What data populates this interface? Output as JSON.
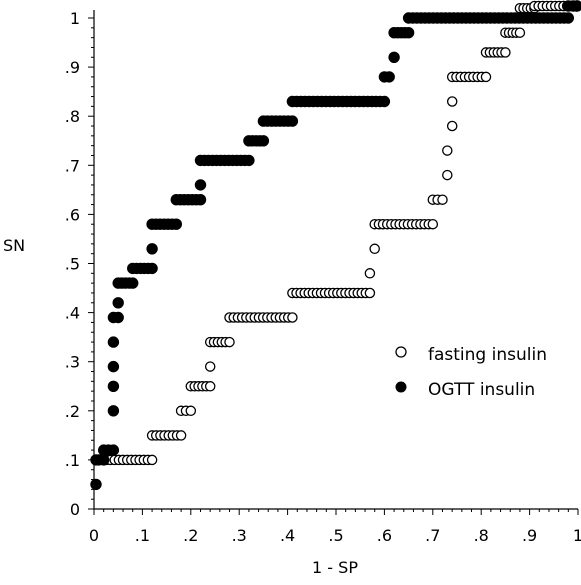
{
  "chart_data": {
    "type": "scatter",
    "xlabel": "1 - SP",
    "ylabel": "SN",
    "xlim": [
      0,
      1
    ],
    "ylim": [
      0,
      1
    ],
    "x_ticks": [
      {
        "value": 0,
        "label": "0"
      },
      {
        "value": 0.1,
        "label": ".1"
      },
      {
        "value": 0.2,
        "label": ".2"
      },
      {
        "value": 0.3,
        "label": ".3"
      },
      {
        "value": 0.4,
        "label": ".4"
      },
      {
        "value": 0.5,
        "label": ".5"
      },
      {
        "value": 0.6,
        "label": ".6"
      },
      {
        "value": 0.7,
        "label": ".7"
      },
      {
        "value": 0.8,
        "label": ".8"
      },
      {
        "value": 0.9,
        "label": ".9"
      },
      {
        "value": 1,
        "label": "1"
      }
    ],
    "y_ticks": [
      {
        "value": 0,
        "label": "0"
      },
      {
        "value": 0.1,
        "label": ".1"
      },
      {
        "value": 0.2,
        "label": ".2"
      },
      {
        "value": 0.3,
        "label": ".3"
      },
      {
        "value": 0.4,
        "label": ".4"
      },
      {
        "value": 0.5,
        "label": ".5"
      },
      {
        "value": 0.6,
        "label": ".6"
      },
      {
        "value": 0.7,
        "label": ".7"
      },
      {
        "value": 0.8,
        "label": ".8"
      },
      {
        "value": 0.9,
        "label": ".9"
      },
      {
        "value": 1,
        "label": "1"
      }
    ],
    "grid": false,
    "legend_position": "right-center",
    "series": [
      {
        "name": "fasting insulin",
        "marker": "open-circle",
        "color": "#000000",
        "segments": [
          {
            "x0": 0.0,
            "x1": 0.0,
            "y": 0.05
          },
          {
            "x0": 0.0,
            "x1": 0.12,
            "y": 0.1
          },
          {
            "x0": 0.12,
            "x1": 0.18,
            "y": 0.15
          },
          {
            "x0": 0.18,
            "x1": 0.2,
            "y": 0.2
          },
          {
            "x0": 0.2,
            "x1": 0.24,
            "y": 0.25
          },
          {
            "x0": 0.24,
            "x1": 0.24,
            "y": 0.29
          },
          {
            "x0": 0.24,
            "x1": 0.28,
            "y": 0.34
          },
          {
            "x0": 0.28,
            "x1": 0.41,
            "y": 0.39
          },
          {
            "x0": 0.41,
            "x1": 0.57,
            "y": 0.44
          },
          {
            "x0": 0.57,
            "x1": 0.57,
            "y": 0.48
          },
          {
            "x0": 0.58,
            "x1": 0.58,
            "y": 0.53
          },
          {
            "x0": 0.58,
            "x1": 0.7,
            "y": 0.58
          },
          {
            "x0": 0.7,
            "x1": 0.72,
            "y": 0.63
          },
          {
            "x0": 0.73,
            "x1": 0.73,
            "y": 0.68
          },
          {
            "x0": 0.73,
            "x1": 0.73,
            "y": 0.73
          },
          {
            "x0": 0.74,
            "x1": 0.74,
            "y": 0.78
          },
          {
            "x0": 0.74,
            "x1": 0.74,
            "y": 0.83
          },
          {
            "x0": 0.74,
            "x1": 0.81,
            "y": 0.88
          },
          {
            "x0": 0.81,
            "x1": 0.85,
            "y": 0.93
          },
          {
            "x0": 0.85,
            "x1": 0.88,
            "y": 0.97
          },
          {
            "x0": 0.88,
            "x1": 0.91,
            "y": 1.02
          },
          {
            "x0": 0.91,
            "x1": 0.97,
            "y": 1.07
          },
          {
            "x0": 0.97,
            "x1": 1.0,
            "y": 1.07
          }
        ]
      },
      {
        "name": "OGTT insulin",
        "marker": "filled-circle",
        "color": "#000000",
        "segments": [
          {
            "x0": 0.0,
            "x1": 0.0,
            "y": 0.05
          },
          {
            "x0": 0.0,
            "x1": 0.02,
            "y": 0.1
          },
          {
            "x0": 0.02,
            "x1": 0.04,
            "y": 0.12
          },
          {
            "x0": 0.04,
            "x1": 0.04,
            "y": 0.2
          },
          {
            "x0": 0.04,
            "x1": 0.04,
            "y": 0.25
          },
          {
            "x0": 0.04,
            "x1": 0.04,
            "y": 0.29
          },
          {
            "x0": 0.04,
            "x1": 0.04,
            "y": 0.34
          },
          {
            "x0": 0.04,
            "x1": 0.05,
            "y": 0.39
          },
          {
            "x0": 0.05,
            "x1": 0.05,
            "y": 0.42
          },
          {
            "x0": 0.05,
            "x1": 0.08,
            "y": 0.46
          },
          {
            "x0": 0.08,
            "x1": 0.12,
            "y": 0.49
          },
          {
            "x0": 0.12,
            "x1": 0.12,
            "y": 0.53
          },
          {
            "x0": 0.12,
            "x1": 0.17,
            "y": 0.58
          },
          {
            "x0": 0.17,
            "x1": 0.22,
            "y": 0.63
          },
          {
            "x0": 0.22,
            "x1": 0.22,
            "y": 0.66
          },
          {
            "x0": 0.22,
            "x1": 0.32,
            "y": 0.71
          },
          {
            "x0": 0.32,
            "x1": 0.35,
            "y": 0.75
          },
          {
            "x0": 0.35,
            "x1": 0.41,
            "y": 0.79
          },
          {
            "x0": 0.41,
            "x1": 0.6,
            "y": 0.83
          },
          {
            "x0": 0.6,
            "x1": 0.61,
            "y": 0.88
          },
          {
            "x0": 0.62,
            "x1": 0.62,
            "y": 0.92
          },
          {
            "x0": 0.62,
            "x1": 0.65,
            "y": 0.97
          },
          {
            "x0": 0.65,
            "x1": 0.98,
            "y": 1.0
          },
          {
            "x0": 0.98,
            "x1": 1.0,
            "y": 1.04
          },
          {
            "x0": 1.0,
            "x1": 1.0,
            "y": 1.07
          }
        ]
      }
    ]
  }
}
